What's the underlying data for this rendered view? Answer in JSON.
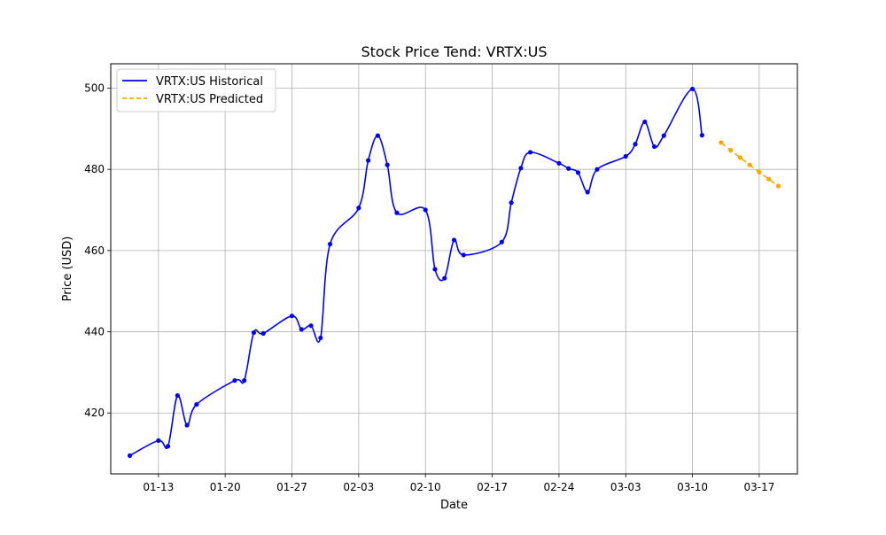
{
  "chart_data": {
    "type": "line",
    "title": "Stock Price Tend: VRTX:US",
    "xlabel": "Date",
    "ylabel": "Price (USD)",
    "xlim": [
      "2025-01-08",
      "2025-03-21"
    ],
    "ylim": [
      405,
      506
    ],
    "grid": true,
    "legend_position": "top-left",
    "x_ticks": [
      {
        "date": "2025-01-13",
        "label": "01-13"
      },
      {
        "date": "2025-01-20",
        "label": "01-20"
      },
      {
        "date": "2025-01-27",
        "label": "01-27"
      },
      {
        "date": "2025-02-03",
        "label": "02-03"
      },
      {
        "date": "2025-02-10",
        "label": "02-10"
      },
      {
        "date": "2025-02-17",
        "label": "02-17"
      },
      {
        "date": "2025-02-24",
        "label": "02-24"
      },
      {
        "date": "2025-03-03",
        "label": "03-03"
      },
      {
        "date": "2025-03-10",
        "label": "03-10"
      },
      {
        "date": "2025-03-17",
        "label": "03-17"
      }
    ],
    "y_ticks": [
      420,
      440,
      460,
      480,
      500
    ],
    "series": [
      {
        "name": "VRTX:US Historical",
        "color": "#0000ff",
        "style": "solid",
        "x": [
          "2025-01-10",
          "2025-01-13",
          "2025-01-14",
          "2025-01-15",
          "2025-01-16",
          "2025-01-17",
          "2025-01-21",
          "2025-01-22",
          "2025-01-23",
          "2025-01-24",
          "2025-01-27",
          "2025-01-28",
          "2025-01-29",
          "2025-01-30",
          "2025-01-31",
          "2025-02-03",
          "2025-02-04",
          "2025-02-05",
          "2025-02-06",
          "2025-02-07",
          "2025-02-10",
          "2025-02-11",
          "2025-02-12",
          "2025-02-13",
          "2025-02-14",
          "2025-02-18",
          "2025-02-19",
          "2025-02-20",
          "2025-02-21",
          "2025-02-24",
          "2025-02-25",
          "2025-02-26",
          "2025-02-27",
          "2025-02-28",
          "2025-03-03",
          "2025-03-04",
          "2025-03-05",
          "2025-03-06",
          "2025-03-07",
          "2025-03-10",
          "2025-03-11"
        ],
        "values": [
          409.5,
          413.2,
          411.8,
          424.3,
          417.0,
          422.1,
          428.0,
          428.0,
          439.8,
          439.6,
          443.9,
          440.6,
          441.5,
          438.5,
          461.6,
          470.5,
          482.2,
          488.3,
          481.1,
          469.3,
          470.0,
          455.4,
          453.2,
          462.6,
          458.9,
          462.1,
          471.8,
          480.3,
          484.2,
          481.5,
          480.2,
          479.2,
          474.4,
          480.0,
          483.2,
          486.2,
          491.7,
          485.6,
          488.3,
          499.8,
          488.4
        ]
      },
      {
        "name": "VRTX:US Predicted",
        "color": "#ffa500",
        "style": "dashed",
        "x": [
          "2025-03-13",
          "2025-03-14",
          "2025-03-15",
          "2025-03-16",
          "2025-03-17",
          "2025-03-18",
          "2025-03-19"
        ],
        "values": [
          486.6,
          484.7,
          482.9,
          481.1,
          479.3,
          477.6,
          475.9
        ]
      }
    ]
  }
}
